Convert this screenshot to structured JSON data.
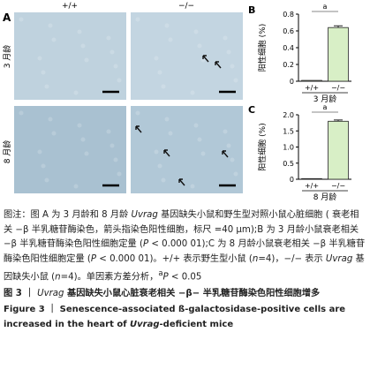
{
  "panel_a": {
    "label": "A",
    "columns": [
      "+/+",
      "−/−"
    ],
    "rows": [
      "3 月龄",
      "8 月龄"
    ]
  },
  "chart_data": [
    {
      "type": "bar",
      "panel": "B",
      "ylabel": "阳性细胞 (%)",
      "xlabel": "3 月龄",
      "categories": [
        "+/+",
        "−/−"
      ],
      "values": [
        0.01,
        0.64
      ],
      "errors": [
        0,
        0.02
      ],
      "color": "#d8efc6",
      "ylim": [
        0,
        0.8
      ],
      "yticks": [
        0,
        0.2,
        0.4,
        0.6,
        0.8
      ],
      "annotation": "a"
    },
    {
      "type": "bar",
      "panel": "C",
      "ylabel": "阳性细胞 (%)",
      "xlabel": "8 月龄",
      "categories": [
        "+/+",
        "−/−"
      ],
      "values": [
        0.02,
        1.8
      ],
      "errors": [
        0,
        0.04
      ],
      "color": "#d8efc6",
      "ylim": [
        0,
        2
      ],
      "yticks": [
        0,
        0.5,
        {
          "value": 1,
          "label": "1.0"
        },
        1.5,
        {
          "value": 2,
          "label": "2.0"
        }
      ],
      "annotation": "a"
    }
  ],
  "caption": {
    "note": [
      {
        "text": "图注：图 A 为 3 月龄和 8 月龄 "
      },
      {
        "text": "Uvrag",
        "style": "i"
      },
      {
        "text": " 基因缺失小鼠和野生型对照小鼠心脏细胞 ( 衰老相关 −β 半乳糖苷酶染色，箭头指染色阳性细胞，标尺 =40 μm);"
      },
      {
        "text": "B 为 3 月龄小鼠衰老相关 −β 半乳糖苷酶染色阳性细胞定量 ("
      },
      {
        "text": "P",
        "style": "i"
      },
      {
        "text": " < 0.000 01);"
      },
      {
        "text": "C 为 8 月龄小鼠衰老相关 −β 半乳糖苷酶染色阳性细胞定量 ("
      },
      {
        "text": "P",
        "style": "i"
      },
      {
        "text": " < 0.000 01)。"
      },
      {
        "text": "+/+ 表示野生型小鼠 ("
      },
      {
        "text": "n",
        "style": "i"
      },
      {
        "text": "=4)，−/− 表示 "
      },
      {
        "text": "Uvrag",
        "style": "i"
      },
      {
        "text": " 基因缺失小鼠 ("
      },
      {
        "text": "n",
        "style": "i"
      },
      {
        "text": "=4)。单因素方差分析，"
      },
      {
        "text": "a",
        "style": "sup"
      },
      {
        "text": "P",
        "style": "i"
      },
      {
        "text": " < 0.05"
      }
    ],
    "title": [
      {
        "text": "图 3 ｜ ",
        "style": "b"
      },
      {
        "text": "Uvrag",
        "style": "i"
      },
      {
        "text": " 基因缺失小鼠心脏衰老相关 −β− 半乳糖苷酶染色阳性细胞增多",
        "style": "b"
      }
    ],
    "title_en": [
      {
        "text": "Figure 3  ｜  Senescence-associated ß-galactosidase-positive cells are increased in the heart of "
      },
      {
        "text": "Uvrag",
        "style": "i"
      },
      {
        "text": "-deficient mice"
      }
    ]
  }
}
